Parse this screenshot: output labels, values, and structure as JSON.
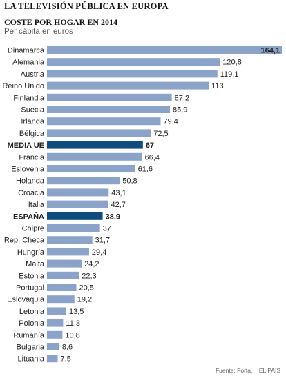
{
  "header": {
    "title": "LA TELEVISIÓN PÚBLICA EN EUROPA",
    "subtitle": "COSTE POR HOGAR EN 2014",
    "unit": "Per cápita en euros"
  },
  "footer": {
    "source": "Fuente: Forta.",
    "publisher": "EL PAÍS"
  },
  "colors": {
    "bar": "#8ba3c8",
    "highlight": "#0e4c7e",
    "text": "#222222"
  },
  "chart_data": {
    "type": "bar",
    "orientation": "horizontal",
    "categories": [
      "Dinamarca",
      "Alemania",
      "Austria",
      "Reino Unido",
      "Finlandia",
      "Suecia",
      "Irlanda",
      "Bélgica",
      "MEDIA UE",
      "Francia",
      "Eslovenia",
      "Holanda",
      "Croacia",
      "Italia",
      "ESPAÑA",
      "Chipre",
      "Rep. Checa",
      "Hungría",
      "Malta",
      "Estonia",
      "Portugal",
      "Eslovaquia",
      "Letonia",
      "Polonia",
      "Rumanía",
      "Bulgaria",
      "Lituania"
    ],
    "values": [
      164.1,
      120.8,
      119.1,
      113,
      87.2,
      85.9,
      79.4,
      72.5,
      67,
      66.4,
      61.6,
      50.8,
      43.1,
      42.7,
      38.9,
      37,
      31.7,
      29.4,
      24.2,
      22.3,
      20.5,
      19.2,
      13.5,
      11.3,
      10.8,
      8.6,
      7.5
    ],
    "value_labels": [
      "164,1",
      "120,8",
      "119,1",
      "113",
      "87,2",
      "85,9",
      "79,4",
      "72,5",
      "67",
      "66,4",
      "61,6",
      "50,8",
      "43,1",
      "42,7",
      "38,9",
      "37",
      "31,7",
      "29,4",
      "24,2",
      "22,3",
      "20,5",
      "19,2",
      "13,5",
      "11,3",
      "10,8",
      "8,6",
      "7,5"
    ],
    "highlighted": [
      "MEDIA UE",
      "ESPAÑA"
    ],
    "xlim": [
      0,
      164.1
    ]
  }
}
